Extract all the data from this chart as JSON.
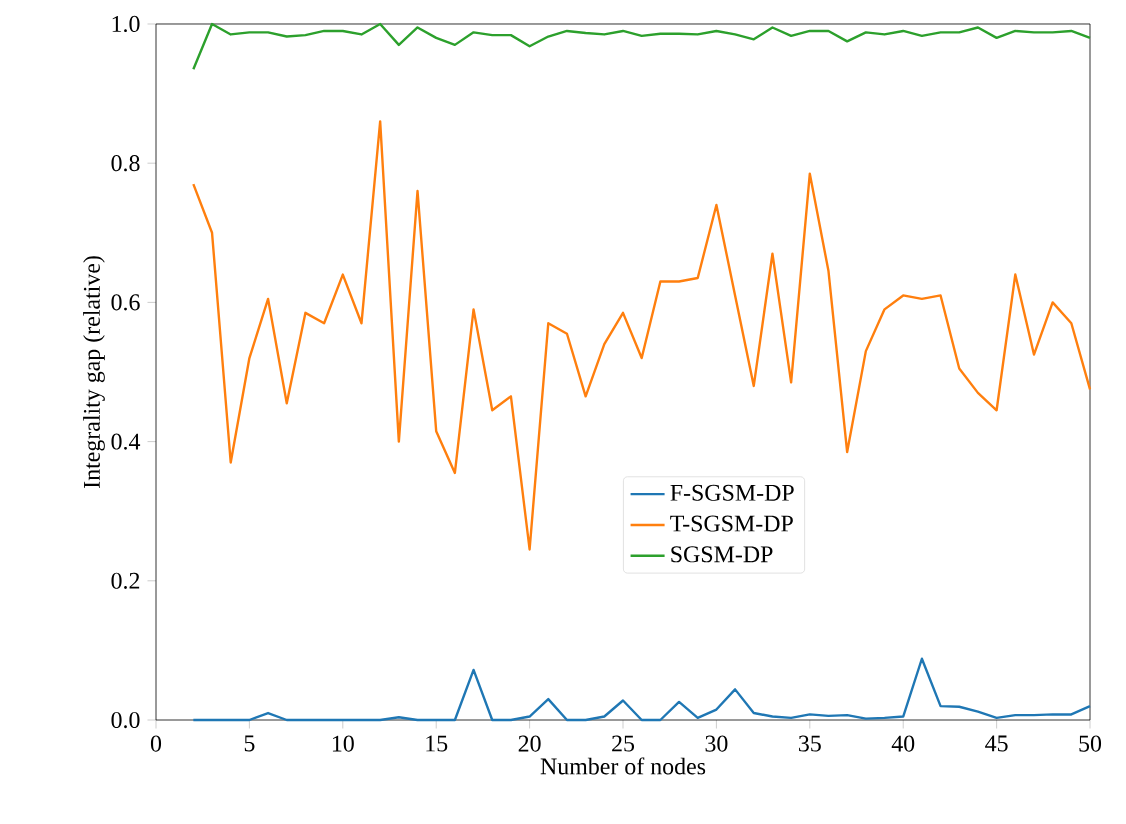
{
  "chart_data": {
    "type": "line",
    "xlabel": "Number of nodes",
    "ylabel": "Integrality gap (relative)",
    "x": [
      2,
      3,
      4,
      5,
      6,
      7,
      8,
      9,
      10,
      11,
      12,
      13,
      14,
      15,
      16,
      17,
      18,
      19,
      20,
      21,
      22,
      23,
      24,
      25,
      26,
      27,
      28,
      29,
      30,
      31,
      32,
      33,
      34,
      35,
      36,
      37,
      38,
      39,
      40,
      41,
      42,
      43,
      44,
      45,
      46,
      47,
      48,
      49,
      50
    ],
    "series": [
      {
        "name": "F-SGSM-DP",
        "color": "#1f77b4",
        "values": [
          0,
          0,
          0,
          0,
          0.01,
          0,
          0,
          0,
          0,
          0,
          0,
          0.004,
          0,
          0,
          0,
          0.072,
          0,
          0,
          0.005,
          0.03,
          0,
          0,
          0.005,
          0.028,
          0,
          0,
          0.026,
          0.003,
          0.015,
          0.044,
          0.01,
          0.005,
          0.003,
          0.008,
          0.006,
          0.007,
          0.002,
          0.003,
          0.005,
          0.088,
          0.02,
          0.019,
          0.012,
          0.003,
          0.007,
          0.007,
          0.008,
          0.008,
          0.02
        ]
      },
      {
        "name": "T-SGSM-DP",
        "color": "#ff7f0e",
        "values": [
          0.77,
          0.7,
          0.37,
          0.52,
          0.605,
          0.455,
          0.585,
          0.57,
          0.64,
          0.57,
          0.86,
          0.4,
          0.76,
          0.415,
          0.355,
          0.59,
          0.445,
          0.465,
          0.245,
          0.57,
          0.555,
          0.465,
          0.54,
          0.585,
          0.52,
          0.63,
          0.63,
          0.635,
          0.74,
          0.61,
          0.48,
          0.67,
          0.485,
          0.785,
          0.645,
          0.385,
          0.53,
          0.59,
          0.61,
          0.605,
          0.61,
          0.505,
          0.47,
          0.445,
          0.64,
          0.525,
          0.6,
          0.57,
          0.475
        ]
      },
      {
        "name": "SGSM-DP",
        "color": "#2ca02c",
        "values": [
          0.935,
          1.0,
          0.985,
          0.988,
          0.988,
          0.982,
          0.984,
          0.99,
          0.99,
          0.985,
          1.0,
          0.97,
          0.995,
          0.98,
          0.97,
          0.988,
          0.984,
          0.984,
          0.968,
          0.982,
          0.99,
          0.987,
          0.985,
          0.99,
          0.983,
          0.986,
          0.986,
          0.985,
          0.99,
          0.985,
          0.978,
          0.995,
          0.983,
          0.99,
          0.99,
          0.975,
          0.988,
          0.985,
          0.99,
          0.983,
          0.988,
          0.988,
          0.995,
          0.98,
          0.99,
          0.988,
          0.988,
          0.99,
          0.98
        ]
      }
    ],
    "xlim": [
      0,
      50
    ],
    "ylim": [
      0,
      1
    ],
    "xticks": [
      0,
      5,
      10,
      15,
      20,
      25,
      30,
      35,
      40,
      45,
      50
    ],
    "yticks": [
      {
        "value": 0,
        "label": "0.0"
      },
      {
        "value": 0.2,
        "label": "0.2"
      },
      {
        "value": 0.4,
        "label": "0.4"
      },
      {
        "value": 0.6,
        "label": "0.6"
      },
      {
        "value": 0.8,
        "label": "0.8"
      },
      {
        "value": 1,
        "label": "1.0"
      }
    ],
    "legend": "right",
    "grid": false,
    "marker": "none",
    "line_style": "solid"
  }
}
